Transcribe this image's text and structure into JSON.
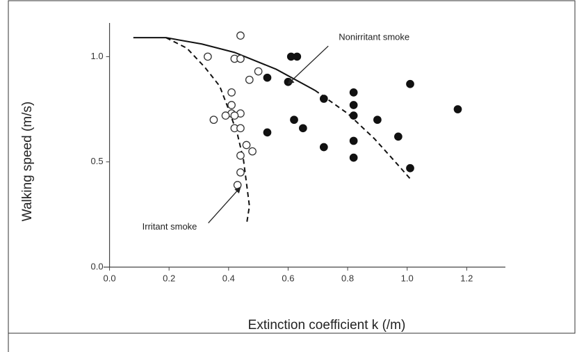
{
  "chart_data": {
    "type": "scatter",
    "xlabel": "Extinction coefficient k (/m)",
    "ylabel": "Walking speed (m/s)",
    "xlim": [
      -0.02,
      1.33
    ],
    "ylim": [
      0,
      1.16
    ],
    "xticks": [
      {
        "value": 0,
        "label": "0.0"
      },
      0.2,
      0.4,
      0.6,
      0.8,
      {
        "value": 1,
        "label": "1.0"
      },
      1.2
    ],
    "yticks": [
      {
        "value": 0,
        "label": "0.0"
      },
      0.5,
      {
        "value": 1,
        "label": "1.0"
      }
    ],
    "series": [
      {
        "marker": "open",
        "color": "#333333",
        "x": [
          0.44,
          0.33,
          0.42,
          0.44,
          0.5,
          0.47,
          0.41,
          0.41,
          0.41,
          0.44,
          0.39,
          0.42,
          0.35,
          0.42,
          0.44,
          0.46,
          0.48,
          0.44,
          0.44,
          0.43
        ],
        "values": [
          1.1,
          1.0,
          0.99,
          0.99,
          0.93,
          0.89,
          0.83,
          0.77,
          0.73,
          0.73,
          0.72,
          0.72,
          0.7,
          0.66,
          0.66,
          0.58,
          0.55,
          0.53,
          0.45,
          0.39
        ]
      },
      {
        "marker": "filled",
        "color": "#111111",
        "x": [
          0.61,
          0.63,
          0.53,
          0.6,
          1.01,
          0.82,
          0.72,
          0.82,
          0.82,
          0.62,
          0.9,
          1.17,
          0.65,
          0.53,
          0.97,
          0.82,
          0.72,
          0.82,
          1.01
        ],
        "values": [
          1.0,
          1.0,
          0.9,
          0.88,
          0.87,
          0.83,
          0.8,
          0.77,
          0.72,
          0.7,
          0.7,
          0.75,
          0.66,
          0.64,
          0.62,
          0.6,
          0.57,
          0.52,
          0.47
        ]
      }
    ],
    "curves": [
      {
        "dashed": true,
        "x": [
          0.19,
          0.26,
          0.32,
          0.37,
          0.4,
          0.43,
          0.45,
          0.46,
          0.47,
          0.46
        ],
        "values": [
          1.09,
          1.04,
          0.95,
          0.86,
          0.75,
          0.63,
          0.51,
          0.4,
          0.29,
          0.2
        ]
      },
      {
        "dashed": false,
        "x": [
          0.08,
          0.19,
          0.31,
          0.42,
          0.56,
          0.69
        ],
        "values": [
          1.09,
          1.09,
          1.06,
          1.02,
          0.94,
          0.84
        ]
      },
      {
        "dashed": true,
        "x": [
          0.69,
          0.8,
          0.89,
          0.96,
          1.01
        ],
        "values": [
          0.84,
          0.73,
          0.61,
          0.5,
          0.42
        ]
      }
    ],
    "annotations": [
      {
        "text": "Nonirritant smoke",
        "x": 0.77,
        "y": 1.09,
        "arrow_x": 0.6,
        "arrow_y": 0.87
      },
      {
        "text": "Irritant smoke",
        "x": 0.11,
        "y": 0.19,
        "arrow_x": 0.44,
        "arrow_y": 0.38
      }
    ]
  }
}
